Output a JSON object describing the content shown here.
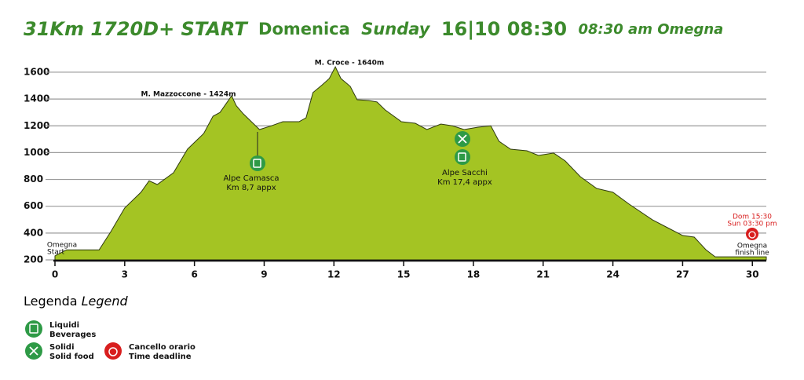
{
  "chart_data": {
    "type": "area",
    "title": "31Km 1720D+ START",
    "title_day": "Domenica",
    "title_day_en": "Sunday",
    "title_date": "16|10 08:30",
    "title_time_en": "08:30 am Omegna",
    "x": [
      0,
      0.5,
      1.9,
      2.4,
      3.0,
      3.7,
      4.05,
      4.4,
      5.1,
      5.7,
      6.4,
      6.8,
      7.1,
      7.6,
      7.8,
      8.1,
      8.45,
      8.8,
      9.3,
      9.8,
      10.5,
      10.8,
      11.1,
      11.5,
      11.8,
      12.06,
      12.3,
      12.7,
      13.0,
      13.5,
      13.85,
      14.2,
      14.9,
      15.5,
      16.0,
      16.6,
      17.1,
      17.6,
      18.2,
      18.75,
      19.1,
      19.6,
      20.3,
      20.8,
      21.45,
      21.95,
      22.6,
      23.3,
      24.0,
      24.7,
      25.7,
      26.35,
      27.0,
      27.5,
      28.0,
      28.4,
      29.4,
      30.6
    ],
    "values": [
      230,
      275,
      275,
      410,
      587,
      704,
      790,
      762,
      850,
      1026,
      1143,
      1272,
      1300,
      1424,
      1350,
      1290,
      1231,
      1172,
      1200,
      1231,
      1231,
      1260,
      1448,
      1506,
      1553,
      1640,
      1553,
      1495,
      1395,
      1389,
      1378,
      1319,
      1231,
      1219,
      1172,
      1213,
      1200,
      1172,
      1190,
      1200,
      1085,
      1026,
      1014,
      979,
      997,
      938,
      821,
      733,
      704,
      616,
      499,
      440,
      382,
      370,
      276,
      223,
      223,
      223
    ],
    "color": "#a4c423",
    "xlim": [
      0,
      30.6
    ],
    "ylim": [
      200,
      1670
    ],
    "xticks": [
      0,
      3,
      6,
      9,
      12,
      15,
      18,
      21,
      24,
      27,
      30
    ],
    "yticks": [
      200,
      400,
      600,
      800,
      1000,
      1200,
      1400,
      1600
    ],
    "grid": true,
    "annotations": [
      "M. Mazzoccone - 1424m",
      "M. Croce - 1640m",
      "Omegna",
      "Start",
      "Alpe Camasca",
      "Km 8,7 appx",
      "Alpe Sacchi",
      "Km 17,4 appx",
      "Dom  15:30",
      "Sun   03:30 pm",
      "Omegna",
      "finish line"
    ],
    "legend": {
      "title": "Legenda",
      "title_en": "Legend",
      "items": [
        [
          "Liquidi",
          "Beverages"
        ],
        [
          "Solidi",
          "Solid food"
        ],
        [
          "Cancello orario",
          "Time deadline"
        ]
      ]
    }
  }
}
